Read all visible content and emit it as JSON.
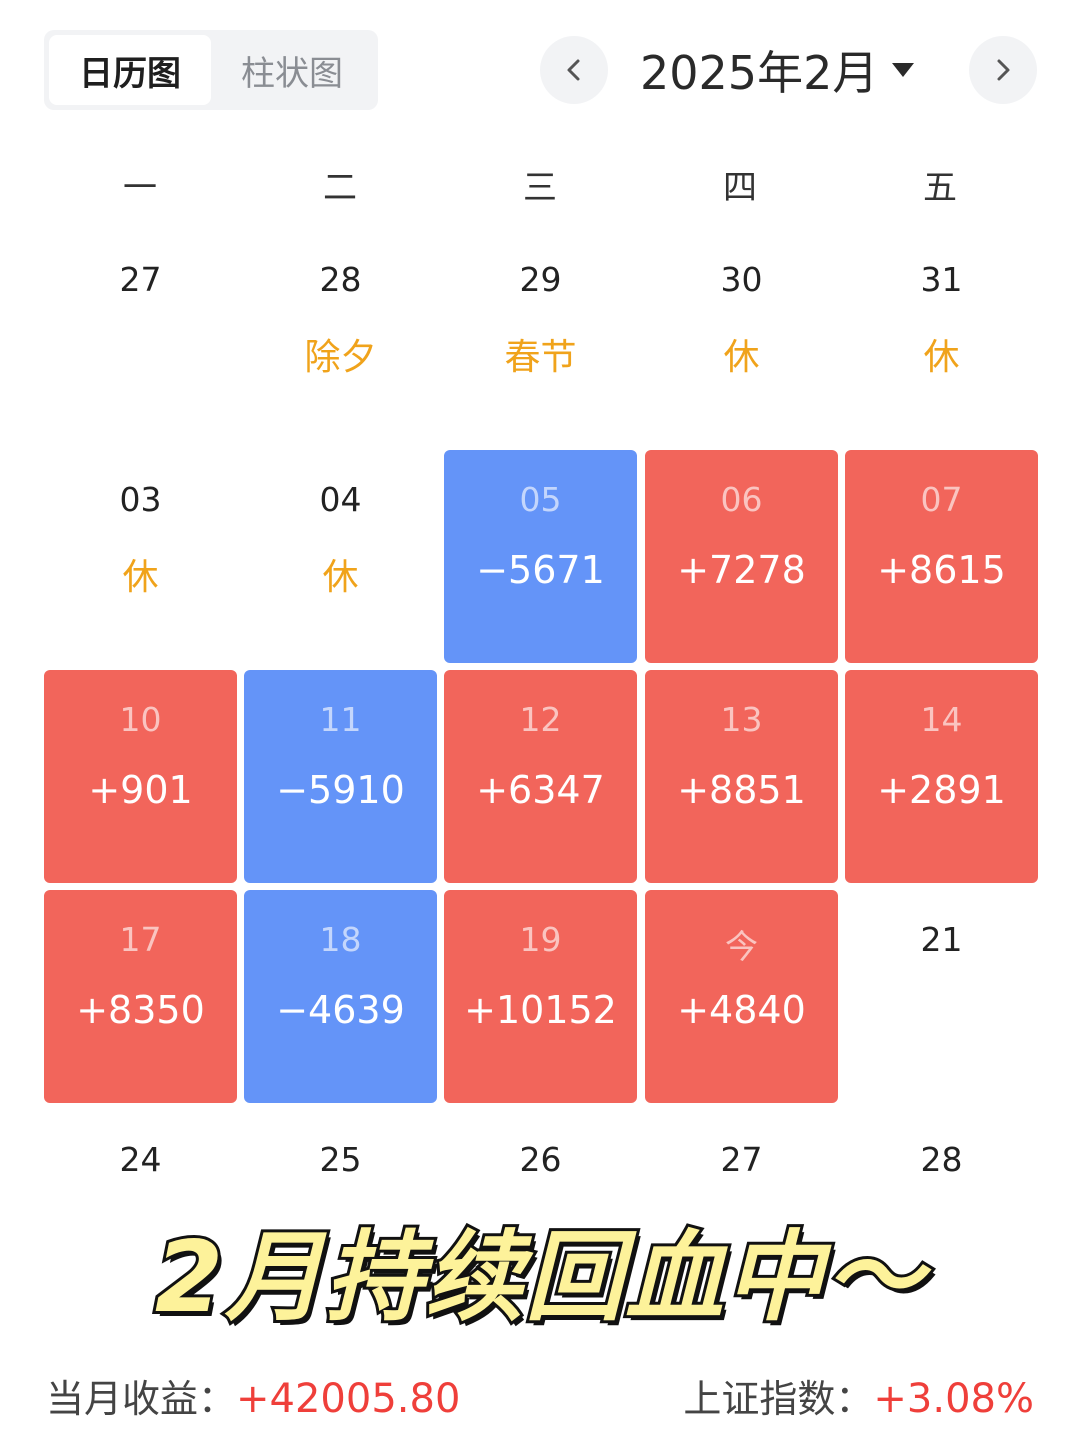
{
  "tabs": [
    {
      "label": "日历图",
      "active": true
    },
    {
      "label": "柱状图",
      "active": false
    }
  ],
  "nav": {
    "month_label": "2025年2月"
  },
  "weekdays": [
    "一",
    "二",
    "三",
    "四",
    "五"
  ],
  "colors": {
    "gain": "#f2655b",
    "loss": "#6494f8",
    "holiday": "#f0a31b",
    "footer_value": "#ef3f3a"
  },
  "weeks": [
    [
      {
        "day": "27",
        "sub": "",
        "kind": "plain"
      },
      {
        "day": "28",
        "sub": "除夕",
        "kind": "plain"
      },
      {
        "day": "29",
        "sub": "春节",
        "kind": "plain"
      },
      {
        "day": "30",
        "sub": "休",
        "kind": "plain"
      },
      {
        "day": "31",
        "sub": "休",
        "kind": "plain"
      }
    ],
    [
      {
        "day": "03",
        "sub": "休",
        "kind": "plain"
      },
      {
        "day": "04",
        "sub": "休",
        "kind": "plain"
      },
      {
        "day": "05",
        "sub": "−5671",
        "kind": "blue"
      },
      {
        "day": "06",
        "sub": "+7278",
        "kind": "red"
      },
      {
        "day": "07",
        "sub": "+8615",
        "kind": "red"
      }
    ],
    [
      {
        "day": "10",
        "sub": "+901",
        "kind": "red"
      },
      {
        "day": "11",
        "sub": "−5910",
        "kind": "blue"
      },
      {
        "day": "12",
        "sub": "+6347",
        "kind": "red"
      },
      {
        "day": "13",
        "sub": "+8851",
        "kind": "red"
      },
      {
        "day": "14",
        "sub": "+2891",
        "kind": "red"
      }
    ],
    [
      {
        "day": "17",
        "sub": "+8350",
        "kind": "red"
      },
      {
        "day": "18",
        "sub": "−4639",
        "kind": "blue"
      },
      {
        "day": "19",
        "sub": "+10152",
        "kind": "red"
      },
      {
        "day": "今",
        "sub": "+4840",
        "kind": "red"
      },
      {
        "day": "21",
        "sub": "",
        "kind": "plain"
      }
    ],
    [
      {
        "day": "24",
        "sub": "",
        "kind": "plain"
      },
      {
        "day": "25",
        "sub": "",
        "kind": "plain"
      },
      {
        "day": "26",
        "sub": "",
        "kind": "plain"
      },
      {
        "day": "27",
        "sub": "",
        "kind": "plain"
      },
      {
        "day": "28",
        "sub": "",
        "kind": "plain"
      }
    ]
  ],
  "banner": "2月持续回血中～",
  "footer": {
    "monthly_label": "当月收益：",
    "monthly_value": "+42005.80",
    "index_label": "上证指数：",
    "index_value": "+3.08%"
  }
}
